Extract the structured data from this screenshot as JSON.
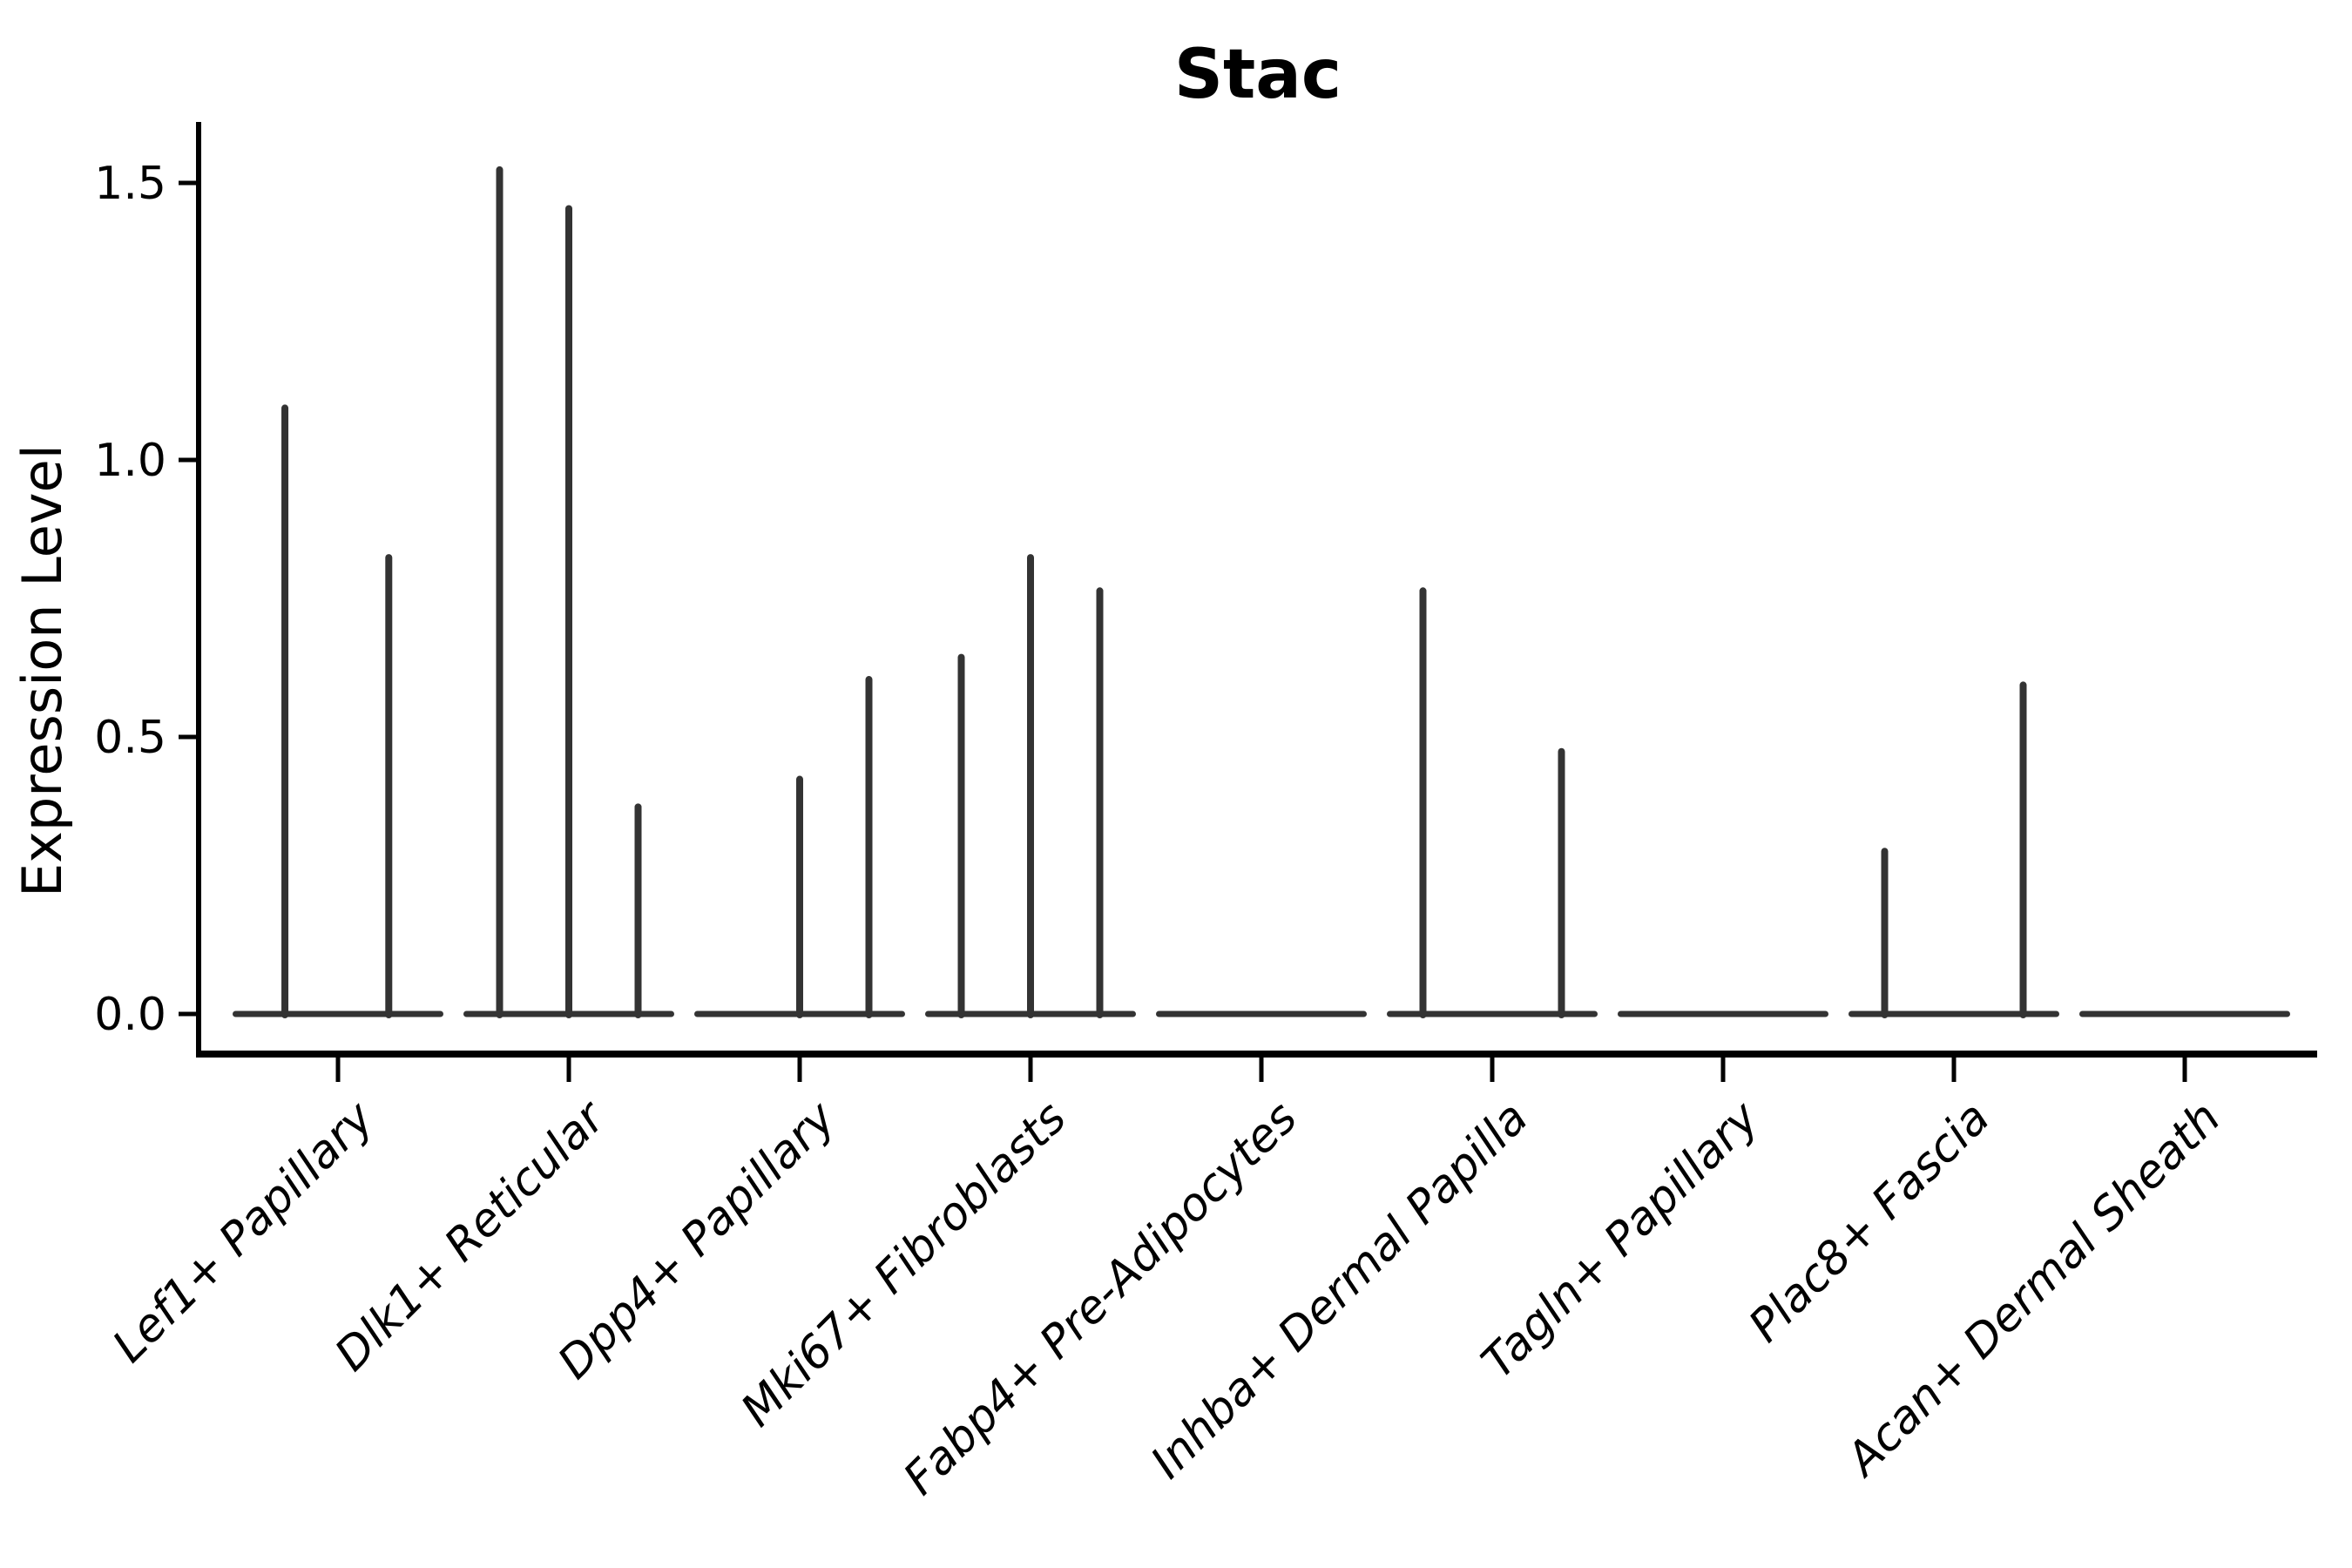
{
  "chart_data": {
    "type": "violin",
    "title": "Stac",
    "ylabel": "Expression Level",
    "xlabel": "",
    "yticks": [
      "0.0",
      "0.5",
      "1.0",
      "1.5"
    ],
    "ylim": [
      -0.07,
      1.65
    ],
    "grid": "off",
    "legend": "none",
    "categories": [
      "Lef1+ Papillary",
      "Dlk1+ Reticular",
      "Dpp4+ Papillary",
      "Mki67+ Fibroblasts",
      "Fabp4+ Pre-Adipocytes",
      "Inhba+ Dermal Papilla",
      "Tagln+ Papillary",
      "Plac8+ Fascia",
      "Acan+ Dermal Sheath"
    ],
    "violins": [
      {
        "category": "Lef1+ Papillary",
        "baseline_value": 0,
        "spikes": [
          {
            "offset": -0.23,
            "value": 1.1
          },
          {
            "offset": 0.22,
            "value": 0.83
          }
        ]
      },
      {
        "category": "Dlk1+ Reticular",
        "baseline_value": 0,
        "spikes": [
          {
            "offset": -0.3,
            "value": 1.53
          },
          {
            "offset": 0.0,
            "value": 1.46
          },
          {
            "offset": 0.3,
            "value": 0.38
          }
        ]
      },
      {
        "category": "Dpp4+ Papillary",
        "baseline_value": 0,
        "spikes": [
          {
            "offset": 0.0,
            "value": 0.43
          },
          {
            "offset": 0.3,
            "value": 0.61
          }
        ]
      },
      {
        "category": "Mki67+ Fibroblasts",
        "baseline_value": 0,
        "spikes": [
          {
            "offset": -0.3,
            "value": 0.65
          },
          {
            "offset": 0.0,
            "value": 0.83
          },
          {
            "offset": 0.3,
            "value": 0.77
          }
        ]
      },
      {
        "category": "Fabp4+ Pre-Adipocytes",
        "baseline_value": 0,
        "spikes": []
      },
      {
        "category": "Inhba+ Dermal Papilla",
        "baseline_value": 0,
        "spikes": [
          {
            "offset": -0.3,
            "value": 0.77
          },
          {
            "offset": 0.3,
            "value": 0.48
          }
        ]
      },
      {
        "category": "Tagln+ Papillary",
        "baseline_value": 0,
        "spikes": []
      },
      {
        "category": "Plac8+ Fascia",
        "baseline_value": 0,
        "spikes": [
          {
            "offset": -0.3,
            "value": 0.3
          },
          {
            "offset": 0.3,
            "value": 0.6
          }
        ]
      },
      {
        "category": "Acan+ Dermal Sheath",
        "baseline_value": 0,
        "spikes": []
      }
    ],
    "colors": {
      "violin": "#333333",
      "axis": "#000000",
      "text": "#000000",
      "background": "#ffffff"
    }
  }
}
